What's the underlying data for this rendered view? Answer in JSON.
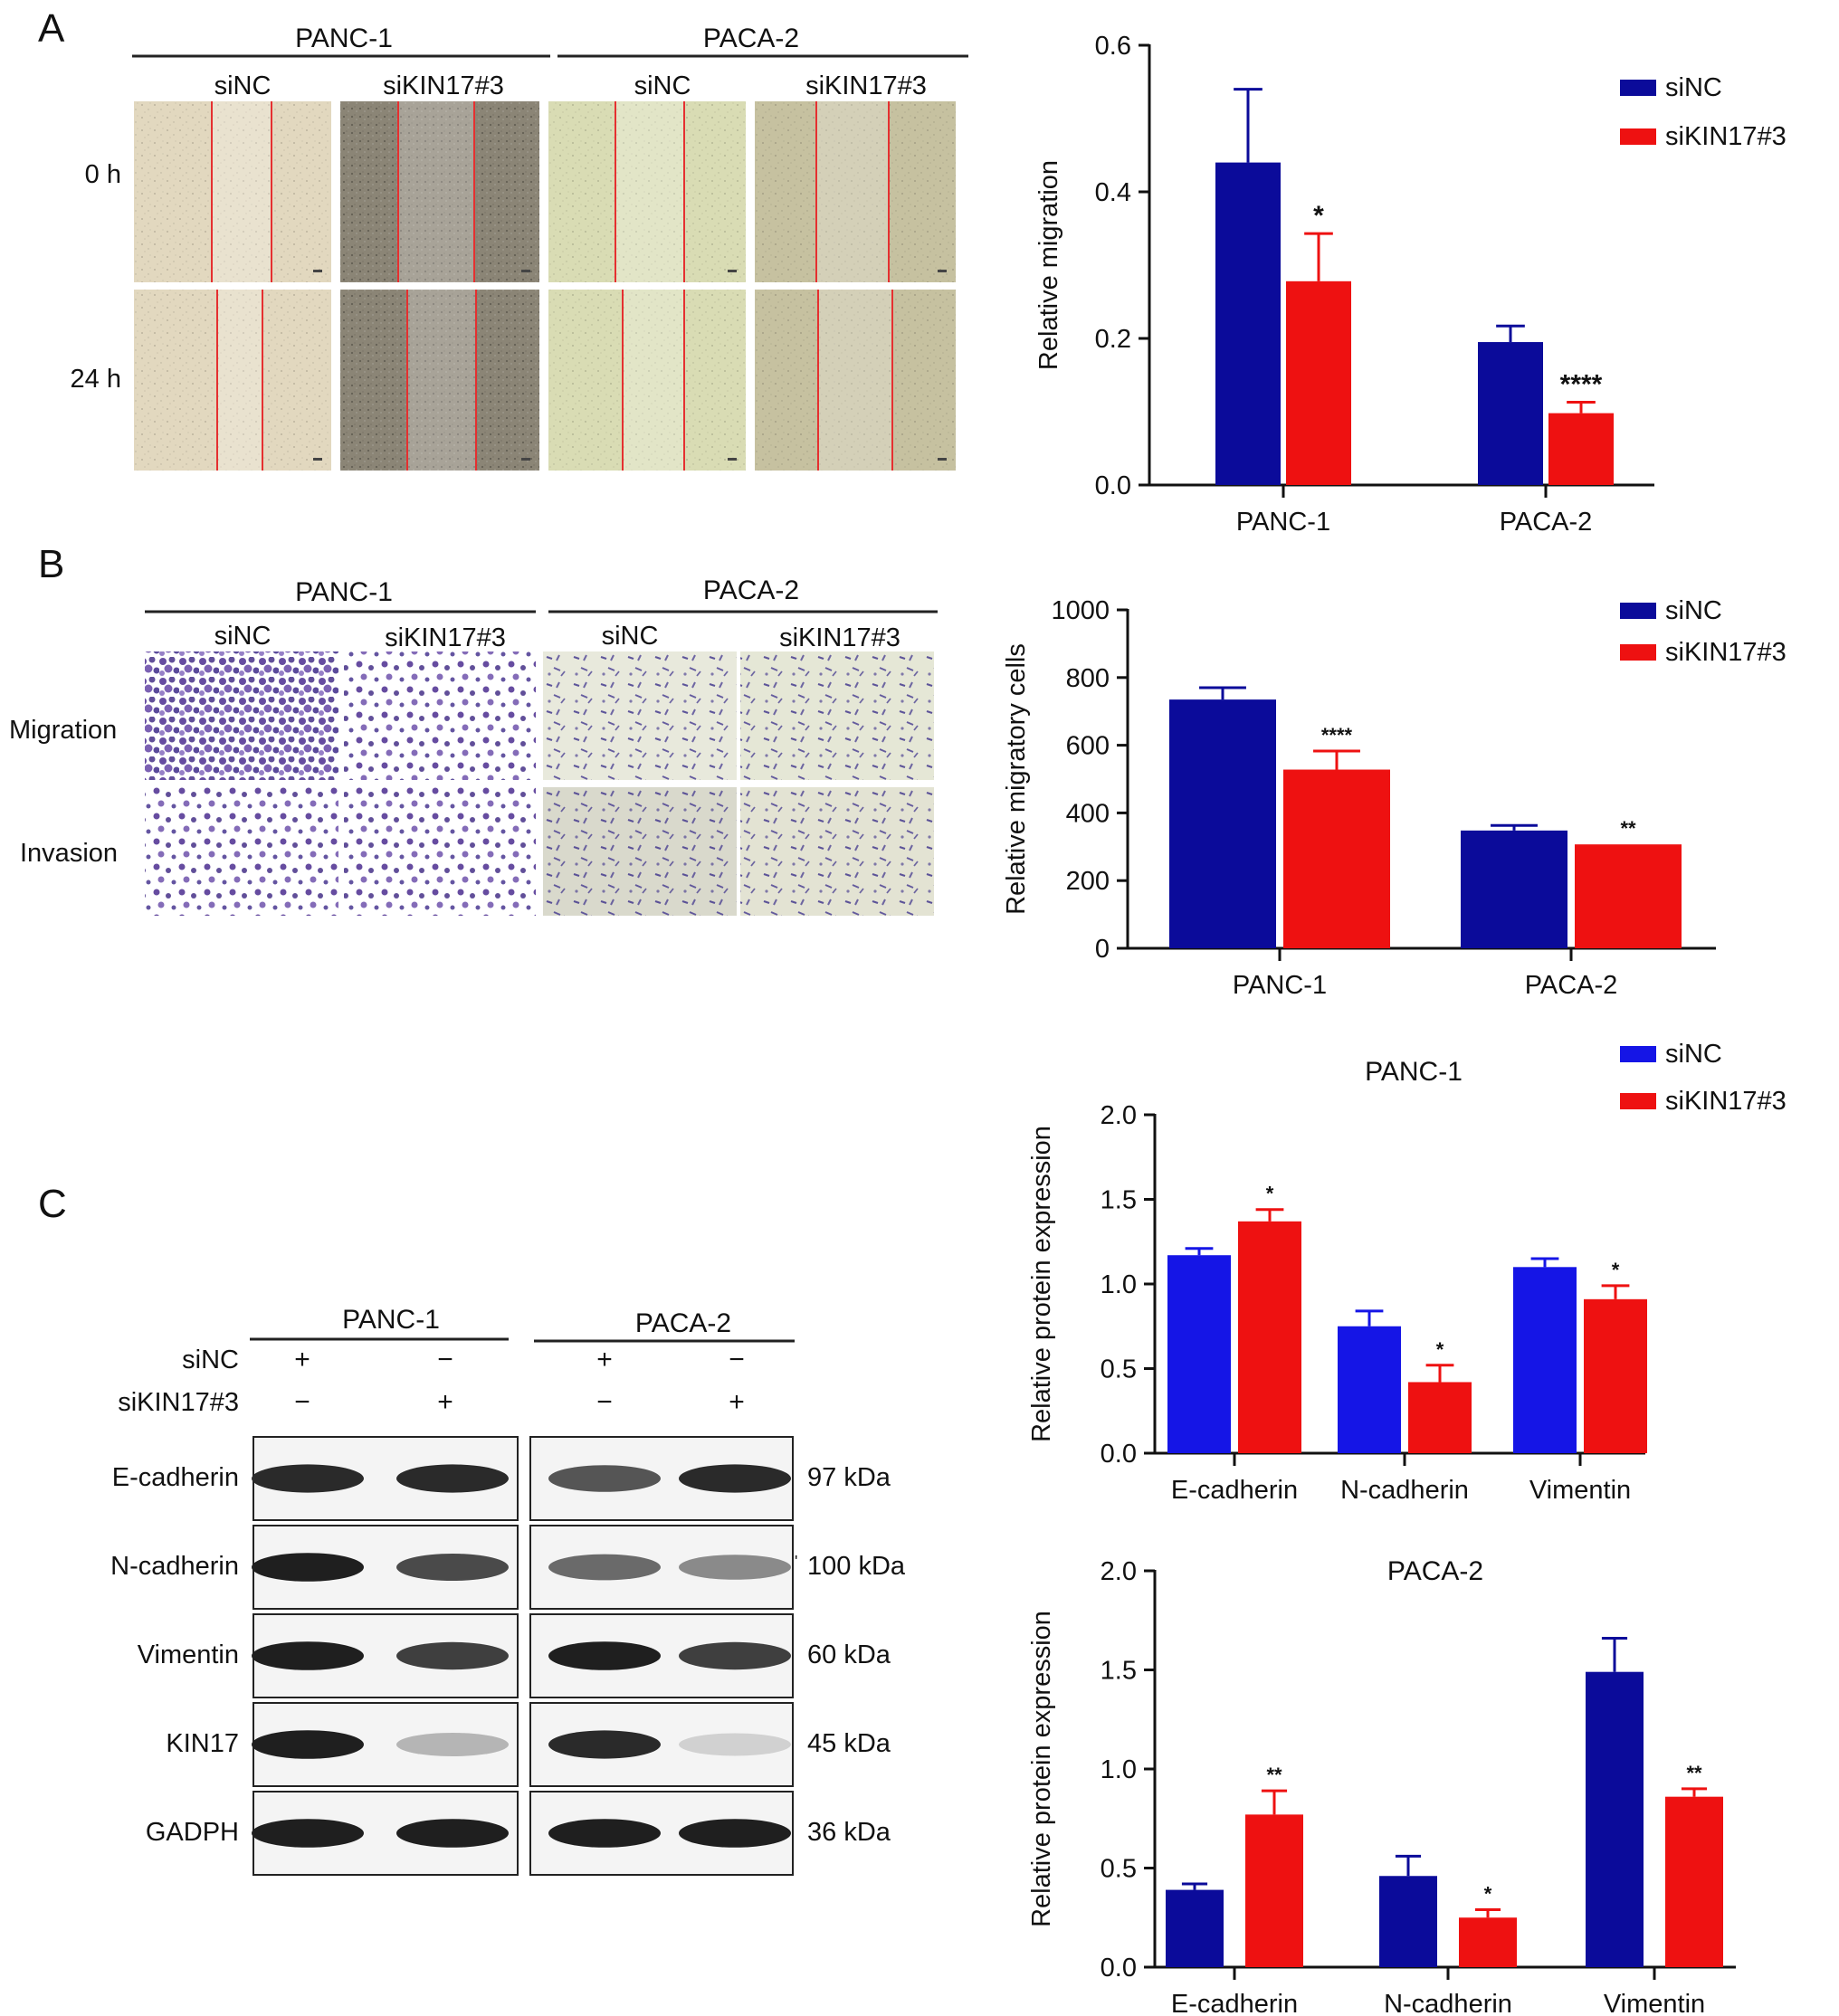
{
  "panel_labels": [
    "A",
    "B",
    "C"
  ],
  "groups": [
    "PANC-1",
    "PACA-2"
  ],
  "treatments": [
    "siNC",
    "siKIN17#3"
  ],
  "panel_a": {
    "row_labels": [
      "0 h",
      "24 h"
    ],
    "micrograph_style": {
      "PANC-1": {
        "siNC": "#e2d8bf",
        "siKIN17#3": "#8b8576"
      },
      "PACA-2": {
        "siNC": "#d9dcb4",
        "siKIN17#3": "#c6c1a0"
      }
    }
  },
  "panel_b": {
    "row_labels": [
      "Migration",
      "Invasion"
    ],
    "stain_color": "#4b2d8f"
  },
  "panel_c": {
    "condition_rows": [
      {
        "label": "siNC",
        "marks": [
          "+",
          "−",
          "+",
          "−"
        ]
      },
      {
        "label": "siKIN17#3",
        "marks": [
          "−",
          "+",
          "−",
          "+"
        ]
      }
    ],
    "blots": [
      {
        "protein": "E-cadherin",
        "size": "97 kDa",
        "intensity": [
          0.9,
          0.9,
          0.7,
          0.9
        ]
      },
      {
        "protein": "N-cadherin",
        "size": "100 kDa",
        "intensity": [
          0.95,
          0.75,
          0.6,
          0.45
        ]
      },
      {
        "protein": "Vimentin",
        "size": "60 kDa",
        "intensity": [
          0.95,
          0.8,
          0.95,
          0.8
        ]
      },
      {
        "protein": "KIN17",
        "size": "45 kDa",
        "intensity": [
          0.95,
          0.25,
          0.9,
          0.12
        ]
      },
      {
        "protein": "GADPH",
        "size": "36 kDa",
        "intensity": [
          0.95,
          0.95,
          0.95,
          0.95
        ]
      }
    ],
    "tick_mark": "'"
  },
  "colors": {
    "siNC_dark": "#0b0b9a",
    "siNC_light": "#1515e6",
    "siKIN17": "#ee1111",
    "scratch_line": "#e53030"
  },
  "chart_data": [
    {
      "id": "chart-a",
      "type": "bar",
      "title": "",
      "ylabel": "Relative migration",
      "xlabel": "",
      "categories": [
        "PANC-1",
        "PACA-2"
      ],
      "ylim": [
        0,
        0.6
      ],
      "yticks": [
        "0.0",
        "0.2",
        "0.4",
        "0.6"
      ],
      "series": [
        {
          "name": "siNC",
          "values": [
            0.44,
            0.195
          ],
          "errors": [
            0.1,
            0.022
          ]
        },
        {
          "name": "siKIN17#3",
          "values": [
            0.278,
            0.098
          ],
          "errors": [
            0.065,
            0.015
          ]
        }
      ],
      "significance": [
        "*",
        "****"
      ],
      "legend": "top-right"
    },
    {
      "id": "chart-b",
      "type": "bar",
      "title": "",
      "ylabel": "Relative migratory cells",
      "xlabel": "",
      "categories": [
        "PANC-1",
        "PACA-2"
      ],
      "ylim": [
        0,
        1000
      ],
      "yticks": [
        "0",
        "200",
        "400",
        "600",
        "800",
        "1000"
      ],
      "series": [
        {
          "name": "siNC",
          "values": [
            735,
            348
          ],
          "errors": [
            35,
            15
          ]
        },
        {
          "name": "siKIN17#3",
          "values": [
            528,
            307
          ],
          "errors": [
            55,
            0
          ]
        }
      ],
      "significance": [
        "****",
        "**"
      ],
      "legend": "top-right"
    },
    {
      "id": "chart-c1",
      "type": "bar",
      "title": "PANC-1",
      "ylabel": "Relative protein expression",
      "xlabel": "",
      "categories": [
        "E-cadherin",
        "N-cadherin",
        "Vimentin"
      ],
      "ylim": [
        0,
        2.0
      ],
      "yticks": [
        "0.0",
        "0.5",
        "1.0",
        "1.5",
        "2.0"
      ],
      "series": [
        {
          "name": "siNC",
          "values": [
            1.17,
            0.75,
            1.1
          ],
          "errors": [
            0.04,
            0.09,
            0.05
          ]
        },
        {
          "name": "siKIN17#3",
          "values": [
            1.37,
            0.42,
            0.91
          ],
          "errors": [
            0.07,
            0.1,
            0.08
          ]
        }
      ],
      "significance": [
        "*",
        "*",
        "*"
      ],
      "legend": "top-right"
    },
    {
      "id": "chart-c2",
      "type": "bar",
      "title": "PACA-2",
      "ylabel": "Relative protein expression",
      "xlabel": "",
      "categories": [
        "E-cadherin",
        "N-cadherin",
        "Vimentin"
      ],
      "ylim": [
        0,
        2.0
      ],
      "yticks": [
        "0.0",
        "0.5",
        "1.0",
        "1.5",
        "2.0"
      ],
      "series": [
        {
          "name": "siNC",
          "values": [
            0.39,
            0.46,
            1.49
          ],
          "errors": [
            0.03,
            0.1,
            0.17
          ]
        },
        {
          "name": "siKIN17#3",
          "values": [
            0.77,
            0.25,
            0.86
          ],
          "errors": [
            0.12,
            0.04,
            0.04
          ]
        }
      ],
      "significance": [
        "**",
        "*",
        "**"
      ],
      "legend": "none"
    }
  ]
}
